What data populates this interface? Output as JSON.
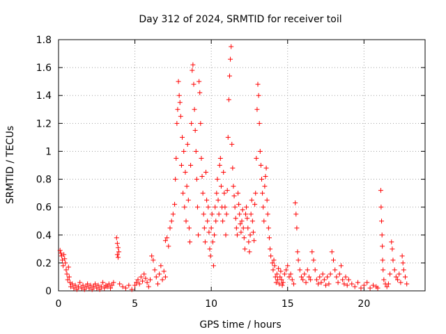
{
  "chart_data": {
    "type": "scatter",
    "title": "Day 312 of 2024, SRMTID for receiver toil",
    "xlabel": "GPS time / hours",
    "ylabel": "SRMTID / TECUs",
    "xlim": [
      0,
      24
    ],
    "ylim": [
      0,
      1.8
    ],
    "xticks": [
      0,
      5,
      10,
      15,
      20
    ],
    "xtick_labels": [
      "0",
      "5",
      "10",
      "15",
      "20"
    ],
    "yticks": [
      0,
      0.2,
      0.4,
      0.6,
      0.8,
      1,
      1.2,
      1.4,
      1.6,
      1.8
    ],
    "ytick_labels": [
      "0",
      "0.2",
      "0.4",
      "0.6",
      "0.8",
      "1",
      "1.2",
      "1.4",
      "1.6",
      "1.8"
    ],
    "grid": true,
    "marker": "+",
    "color": "#ff0000",
    "series": [
      {
        "name": "SRMTID",
        "points": [
          [
            0.1,
            0.29
          ],
          [
            0.15,
            0.27
          ],
          [
            0.2,
            0.25
          ],
          [
            0.25,
            0.22
          ],
          [
            0.3,
            0.18
          ],
          [
            0.35,
            0.26
          ],
          [
            0.4,
            0.23
          ],
          [
            0.45,
            0.2
          ],
          [
            0.5,
            0.15
          ],
          [
            0.55,
            0.12
          ],
          [
            0.6,
            0.08
          ],
          [
            0.65,
            0.17
          ],
          [
            0.7,
            0.1
          ],
          [
            0.75,
            0.06
          ],
          [
            0.8,
            0.03
          ],
          [
            0.9,
            0.05
          ],
          [
            1.0,
            0.02
          ],
          [
            1.1,
            0.04
          ],
          [
            1.2,
            0.01
          ],
          [
            1.3,
            0.03
          ],
          [
            1.4,
            0.06
          ],
          [
            1.5,
            0.02
          ],
          [
            1.6,
            0.04
          ],
          [
            1.7,
            0.01
          ],
          [
            1.8,
            0.03
          ],
          [
            1.9,
            0.05
          ],
          [
            2.0,
            0.02
          ],
          [
            2.1,
            0.04
          ],
          [
            2.2,
            0.01
          ],
          [
            2.3,
            0.03
          ],
          [
            2.4,
            0.05
          ],
          [
            2.5,
            0.02
          ],
          [
            2.6,
            0.04
          ],
          [
            2.7,
            0.01
          ],
          [
            2.8,
            0.03
          ],
          [
            2.9,
            0.06
          ],
          [
            3.0,
            0.02
          ],
          [
            3.1,
            0.04
          ],
          [
            3.2,
            0.03
          ],
          [
            3.3,
            0.05
          ],
          [
            3.4,
            0.02
          ],
          [
            3.5,
            0.04
          ],
          [
            3.6,
            0.06
          ],
          [
            3.8,
            0.38
          ],
          [
            3.85,
            0.34
          ],
          [
            3.9,
            0.31
          ],
          [
            3.95,
            0.28
          ],
          [
            3.85,
            0.26
          ],
          [
            3.9,
            0.24
          ],
          [
            4.0,
            0.05
          ],
          [
            4.2,
            0.03
          ],
          [
            4.4,
            0.02
          ],
          [
            4.6,
            0.04
          ],
          [
            4.8,
            0.01
          ],
          [
            5.0,
            0.04
          ],
          [
            5.1,
            0.06
          ],
          [
            5.2,
            0.08
          ],
          [
            5.3,
            0.05
          ],
          [
            5.4,
            0.1
          ],
          [
            5.5,
            0.07
          ],
          [
            5.6,
            0.12
          ],
          [
            5.7,
            0.09
          ],
          [
            5.8,
            0.06
          ],
          [
            5.9,
            0.03
          ],
          [
            6.0,
            0.08
          ],
          [
            6.1,
            0.25
          ],
          [
            6.2,
            0.22
          ],
          [
            6.3,
            0.15
          ],
          [
            6.4,
            0.1
          ],
          [
            6.5,
            0.05
          ],
          [
            6.6,
            0.12
          ],
          [
            6.7,
            0.18
          ],
          [
            6.8,
            0.08
          ],
          [
            6.9,
            0.14
          ],
          [
            7.0,
            0.1
          ],
          [
            7.0,
            0.36
          ],
          [
            7.1,
            0.38
          ],
          [
            7.2,
            0.32
          ],
          [
            7.3,
            0.45
          ],
          [
            7.4,
            0.5
          ],
          [
            7.5,
            0.55
          ],
          [
            7.6,
            0.62
          ],
          [
            7.65,
            0.8
          ],
          [
            7.7,
            0.95
          ],
          [
            7.75,
            1.2
          ],
          [
            7.8,
            1.3
          ],
          [
            7.85,
            1.5
          ],
          [
            7.9,
            1.4
          ],
          [
            7.95,
            1.35
          ],
          [
            8.0,
            1.25
          ],
          [
            8.05,
            0.9
          ],
          [
            8.1,
            1.1
          ],
          [
            8.15,
            0.7
          ],
          [
            8.2,
            1.0
          ],
          [
            8.25,
            0.6
          ],
          [
            8.3,
            0.85
          ],
          [
            8.35,
            0.5
          ],
          [
            8.4,
            0.75
          ],
          [
            8.45,
            1.05
          ],
          [
            8.5,
            0.65
          ],
          [
            8.55,
            0.45
          ],
          [
            8.6,
            0.35
          ],
          [
            8.65,
            0.9
          ],
          [
            8.7,
            1.2
          ],
          [
            8.75,
            1.58
          ],
          [
            8.8,
            1.62
          ],
          [
            8.85,
            1.48
          ],
          [
            8.9,
            1.3
          ],
          [
            8.95,
            1.15
          ],
          [
            9.0,
            1.0
          ],
          [
            9.05,
            0.8
          ],
          [
            9.1,
            0.6
          ],
          [
            9.15,
            0.4
          ],
          [
            9.2,
            1.5
          ],
          [
            9.25,
            1.42
          ],
          [
            9.3,
            1.2
          ],
          [
            9.35,
            0.95
          ],
          [
            9.4,
            0.82
          ],
          [
            9.45,
            0.7
          ],
          [
            9.5,
            0.55
          ],
          [
            9.55,
            0.45
          ],
          [
            9.6,
            0.35
          ],
          [
            9.65,
            0.85
          ],
          [
            9.7,
            0.65
          ],
          [
            9.75,
            0.5
          ],
          [
            9.8,
            0.6
          ],
          [
            9.85,
            0.42
          ],
          [
            9.9,
            0.3
          ],
          [
            9.95,
            0.25
          ],
          [
            10.0,
            0.45
          ],
          [
            10.05,
            0.55
          ],
          [
            10.1,
            0.35
          ],
          [
            10.15,
            0.18
          ],
          [
            10.2,
            0.4
          ],
          [
            10.25,
            0.6
          ],
          [
            10.3,
            0.5
          ],
          [
            10.35,
            0.7
          ],
          [
            10.4,
            0.8
          ],
          [
            10.45,
            0.65
          ],
          [
            10.5,
            0.55
          ],
          [
            10.55,
            0.9
          ],
          [
            10.6,
            0.95
          ],
          [
            10.65,
            0.75
          ],
          [
            10.7,
            0.6
          ],
          [
            10.75,
            0.5
          ],
          [
            10.8,
            0.85
          ],
          [
            10.85,
            0.7
          ],
          [
            10.9,
            0.6
          ],
          [
            10.95,
            0.4
          ],
          [
            11.0,
            0.55
          ],
          [
            11.05,
            0.72
          ],
          [
            11.1,
            1.1
          ],
          [
            11.15,
            1.37
          ],
          [
            11.2,
            1.54
          ],
          [
            11.25,
            1.66
          ],
          [
            11.3,
            1.75
          ],
          [
            11.35,
            1.05
          ],
          [
            11.4,
            0.88
          ],
          [
            11.45,
            0.75
          ],
          [
            11.5,
            0.68
          ],
          [
            11.55,
            0.6
          ],
          [
            11.6,
            0.52
          ],
          [
            11.65,
            0.45
          ],
          [
            11.7,
            0.4
          ],
          [
            11.75,
            0.7
          ],
          [
            11.8,
            0.62
          ],
          [
            11.85,
            0.55
          ],
          [
            11.9,
            0.48
          ],
          [
            11.95,
            0.42
          ],
          [
            12.0,
            0.5
          ],
          [
            12.05,
            0.58
          ],
          [
            12.1,
            0.45
          ],
          [
            12.15,
            0.38
          ],
          [
            12.2,
            0.3
          ],
          [
            12.25,
            0.55
          ],
          [
            12.3,
            0.6
          ],
          [
            12.35,
            0.52
          ],
          [
            12.4,
            0.45
          ],
          [
            12.45,
            0.35
          ],
          [
            12.5,
            0.28
          ],
          [
            12.55,
            0.4
          ],
          [
            12.6,
            0.55
          ],
          [
            12.65,
            0.65
          ],
          [
            12.7,
            0.5
          ],
          [
            12.75,
            0.42
          ],
          [
            12.8,
            0.36
          ],
          [
            12.85,
            0.62
          ],
          [
            12.9,
            0.7
          ],
          [
            12.95,
            0.95
          ],
          [
            13.0,
            1.3
          ],
          [
            13.05,
            1.48
          ],
          [
            13.1,
            1.4
          ],
          [
            13.15,
            1.2
          ],
          [
            13.2,
            1.0
          ],
          [
            13.25,
            0.9
          ],
          [
            13.3,
            0.8
          ],
          [
            13.35,
            0.7
          ],
          [
            13.4,
            0.6
          ],
          [
            13.45,
            0.5
          ],
          [
            13.5,
            0.75
          ],
          [
            13.55,
            0.82
          ],
          [
            13.6,
            0.88
          ],
          [
            13.65,
            0.65
          ],
          [
            13.7,
            0.55
          ],
          [
            13.75,
            0.45
          ],
          [
            13.8,
            0.38
          ],
          [
            13.85,
            0.3
          ],
          [
            13.9,
            0.25
          ],
          [
            14.0,
            0.2
          ],
          [
            14.05,
            0.15
          ],
          [
            14.1,
            0.22
          ],
          [
            14.15,
            0.18
          ],
          [
            14.2,
            0.1
          ],
          [
            14.25,
            0.06
          ],
          [
            14.3,
            0.12
          ],
          [
            14.35,
            0.08
          ],
          [
            14.4,
            0.16
          ],
          [
            14.45,
            0.05
          ],
          [
            14.5,
            0.1
          ],
          [
            14.55,
            0.14
          ],
          [
            14.6,
            0.08
          ],
          [
            14.65,
            0.04
          ],
          [
            14.7,
            0.06
          ],
          [
            14.8,
            0.12
          ],
          [
            14.9,
            0.15
          ],
          [
            15.0,
            0.18
          ],
          [
            15.1,
            0.1
          ],
          [
            15.2,
            0.12
          ],
          [
            15.3,
            0.08
          ],
          [
            15.4,
            0.05
          ],
          [
            15.5,
            0.63
          ],
          [
            15.55,
            0.55
          ],
          [
            15.6,
            0.45
          ],
          [
            15.65,
            0.28
          ],
          [
            15.7,
            0.22
          ],
          [
            15.8,
            0.15
          ],
          [
            15.9,
            0.1
          ],
          [
            16.0,
            0.08
          ],
          [
            16.1,
            0.12
          ],
          [
            16.2,
            0.06
          ],
          [
            16.3,
            0.15
          ],
          [
            16.4,
            0.1
          ],
          [
            16.5,
            0.08
          ],
          [
            16.6,
            0.28
          ],
          [
            16.7,
            0.22
          ],
          [
            16.8,
            0.15
          ],
          [
            16.9,
            0.08
          ],
          [
            17.0,
            0.05
          ],
          [
            17.1,
            0.1
          ],
          [
            17.2,
            0.06
          ],
          [
            17.3,
            0.12
          ],
          [
            17.4,
            0.08
          ],
          [
            17.5,
            0.04
          ],
          [
            17.6,
            0.1
          ],
          [
            17.7,
            0.05
          ],
          [
            17.8,
            0.12
          ],
          [
            17.9,
            0.28
          ],
          [
            18.0,
            0.22
          ],
          [
            18.1,
            0.15
          ],
          [
            18.2,
            0.1
          ],
          [
            18.3,
            0.06
          ],
          [
            18.4,
            0.12
          ],
          [
            18.5,
            0.18
          ],
          [
            18.6,
            0.08
          ],
          [
            18.7,
            0.05
          ],
          [
            18.8,
            0.1
          ],
          [
            18.9,
            0.04
          ],
          [
            19.0,
            0.08
          ],
          [
            19.2,
            0.05
          ],
          [
            19.4,
            0.03
          ],
          [
            19.6,
            0.06
          ],
          [
            19.8,
            0.02
          ],
          [
            20.0,
            0.04
          ],
          [
            20.2,
            0.06
          ],
          [
            20.4,
            0.02
          ],
          [
            20.6,
            0.04
          ],
          [
            20.8,
            0.03
          ],
          [
            20.9,
            0.02
          ],
          [
            21.1,
            0.72
          ],
          [
            21.12,
            0.6
          ],
          [
            21.15,
            0.5
          ],
          [
            21.18,
            0.4
          ],
          [
            21.2,
            0.32
          ],
          [
            21.22,
            0.22
          ],
          [
            21.25,
            0.15
          ],
          [
            21.3,
            0.08
          ],
          [
            21.4,
            0.05
          ],
          [
            21.5,
            0.03
          ],
          [
            21.6,
            0.05
          ],
          [
            21.7,
            0.12
          ],
          [
            21.8,
            0.35
          ],
          [
            21.85,
            0.3
          ],
          [
            21.9,
            0.22
          ],
          [
            22.0,
            0.15
          ],
          [
            22.1,
            0.1
          ],
          [
            22.2,
            0.08
          ],
          [
            22.3,
            0.12
          ],
          [
            22.4,
            0.06
          ],
          [
            22.5,
            0.25
          ],
          [
            22.55,
            0.2
          ],
          [
            22.6,
            0.15
          ],
          [
            22.7,
            0.1
          ],
          [
            22.8,
            0.05
          ]
        ]
      }
    ]
  }
}
